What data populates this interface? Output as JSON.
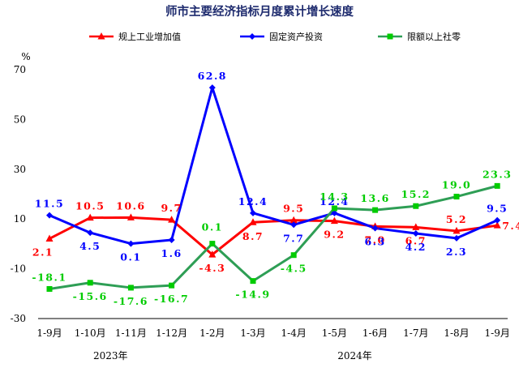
{
  "chart_data": {
    "type": "line",
    "title": "师市主要经济指标月度累计增长速度",
    "ylabel": "%",
    "ylim": [
      -30,
      70
    ],
    "yticks": [
      -30,
      -10,
      10,
      30,
      50,
      70
    ],
    "categories": [
      "1-9月",
      "1-10月",
      "1-11月",
      "1-12月",
      "1-2月",
      "1-3月",
      "1-4月",
      "1-5月",
      "1-6月",
      "1-7月",
      "1-8月",
      "1-9月"
    ],
    "year_labels": [
      {
        "text": "2023年",
        "start": 0,
        "end": 3
      },
      {
        "text": "2024年",
        "start": 4,
        "end": 11
      }
    ],
    "legend_position": "top",
    "grid": false,
    "series": [
      {
        "name": "规上工业增加值",
        "color": "#ff0000",
        "marker": "triangle",
        "values": [
          2.1,
          10.5,
          10.6,
          9.7,
          -4.3,
          8.7,
          9.5,
          9.2,
          7.0,
          6.7,
          5.2,
          7.4
        ],
        "labels": [
          "2.1",
          "10.5",
          "10.6",
          "9.7",
          "-4.3",
          "8.7",
          "9.5",
          "9.2",
          "7.0",
          "6.7",
          "5.2",
          "7.4"
        ]
      },
      {
        "name": "固定资产投资",
        "color": "#0000ff",
        "marker": "diamond",
        "values": [
          11.5,
          4.5,
          0.1,
          1.6,
          62.8,
          12.4,
          7.7,
          12.4,
          6.3,
          4.2,
          2.3,
          9.5
        ],
        "labels": [
          "11.5",
          "4.5",
          "0.1",
          "1.6",
          "62.8",
          "12.4",
          "7.7",
          "12.4",
          "6.3",
          "4.2",
          "2.3",
          "9.5"
        ]
      },
      {
        "name": "限额以上社零",
        "color": "#00cc00",
        "line_color": "#2e9e55",
        "marker": "square",
        "values": [
          -18.1,
          -15.6,
          -17.6,
          -16.7,
          0.1,
          -14.9,
          -4.5,
          14.3,
          13.6,
          15.2,
          19.0,
          23.3
        ],
        "labels": [
          "-18.1",
          "-15.6",
          "-17.6",
          "-16.7",
          "0.1",
          "-14.9",
          "-4.5",
          "14.3",
          "13.6",
          "15.2",
          "19.0",
          "23.3"
        ]
      }
    ]
  }
}
